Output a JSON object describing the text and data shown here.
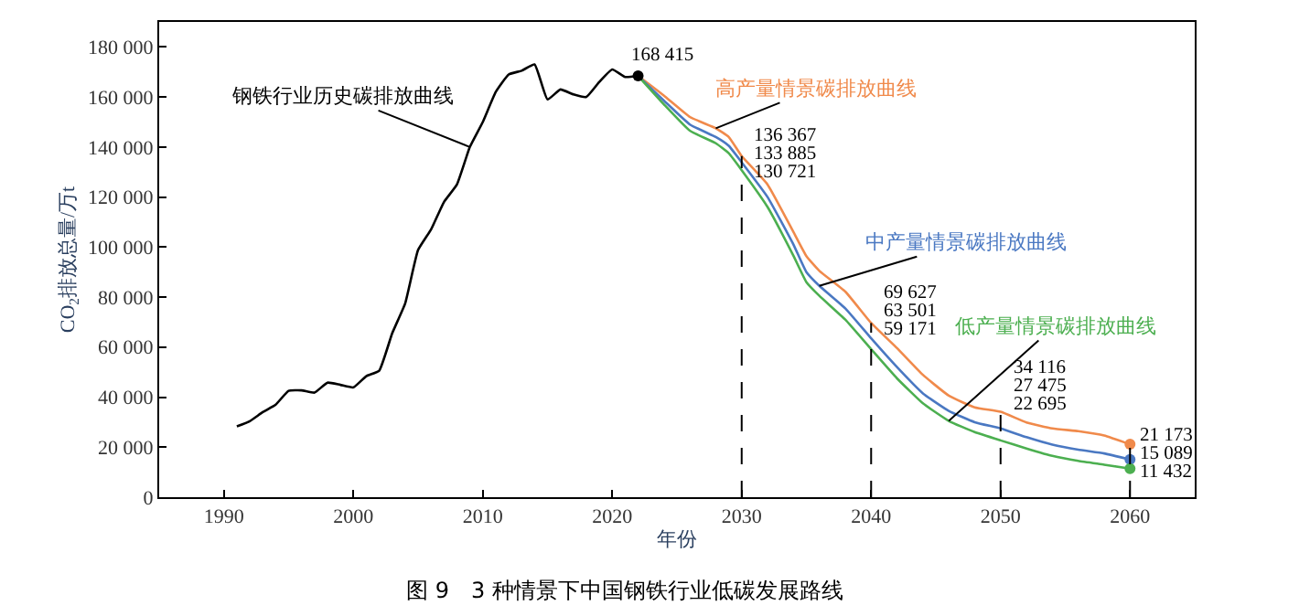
{
  "chart_data": {
    "type": "line",
    "title": "图 9　3 种情景下中国钢铁行业低碳发展路线",
    "xlabel": "年份",
    "ylabel": "CO$_{2}$排放总量/万t",
    "xlim": [
      1985,
      2065
    ],
    "xticks": [
      1990,
      2000,
      2010,
      2020,
      2030,
      2040,
      2050,
      2060
    ],
    "ylim": [
      0,
      190000
    ],
    "yticks": [
      0,
      {
        "value": 20000,
        "label": "20 000"
      },
      {
        "value": 40000,
        "label": "40 000"
      },
      {
        "value": 60000,
        "label": "60 000"
      },
      {
        "value": 80000,
        "label": "80 000"
      },
      {
        "value": 100000,
        "label": "100 000"
      },
      {
        "value": 120000,
        "label": "120 000"
      },
      {
        "value": 140000,
        "label": "140 000"
      },
      {
        "value": 160000,
        "label": "160 000"
      },
      {
        "value": 180000,
        "label": "180 000"
      }
    ],
    "line_style": "solid",
    "ref_lines": [
      {
        "axis": "x",
        "value": 2030,
        "color": "#000000",
        "line_style": "dashed"
      },
      {
        "axis": "x",
        "value": 2040,
        "color": "#000000",
        "line_style": "dashed"
      },
      {
        "axis": "x",
        "value": 2050,
        "color": "#000000",
        "line_style": "dashed"
      },
      {
        "axis": "x",
        "value": 2060,
        "color": "#000000",
        "line_style": "dashed"
      }
    ],
    "series": [
      {
        "name": "钢铁行业历史碳排放曲线",
        "color": "#000000",
        "x": [
          1991,
          1992,
          1993,
          1994,
          1995,
          1996,
          1997,
          1998,
          1999,
          2000,
          2001,
          2002,
          2003,
          2004,
          2005,
          2006,
          2007,
          2008,
          2009,
          2010,
          2011,
          2012,
          2013,
          2014,
          2015,
          2016,
          2017,
          2018,
          2019,
          2020,
          2021,
          2022
        ],
        "values": [
          28300,
          30400,
          34000,
          37000,
          42500,
          42700,
          41800,
          45800,
          44900,
          43900,
          48400,
          50600,
          65500,
          77400,
          98800,
          107000,
          118000,
          125000,
          140000,
          150000,
          162000,
          169000,
          170500,
          173000,
          159000,
          163000,
          161000,
          160000,
          166000,
          171000,
          168000,
          168415
        ]
      },
      {
        "name": "高产量情景碳排放曲线",
        "color": "#f08a4b",
        "x": [
          2022,
          2024,
          2026,
          2028,
          2029,
          2030,
          2032,
          2034,
          2035,
          2036,
          2038,
          2040,
          2042,
          2044,
          2046,
          2048,
          2050,
          2052,
          2054,
          2056,
          2058,
          2060
        ],
        "values": [
          168415,
          160500,
          152000,
          147500,
          144000,
          136367,
          125000,
          106000,
          96400,
          90500,
          82200,
          69627,
          59600,
          48900,
          40600,
          35900,
          34116,
          29900,
          27500,
          26400,
          24700,
          21173
        ],
        "value_labels": [
          null,
          null,
          null,
          null,
          null,
          "136 367",
          null,
          null,
          null,
          null,
          null,
          "69 627",
          null,
          null,
          null,
          null,
          "34 116",
          null,
          null,
          null,
          null,
          null
        ]
      },
      {
        "name": "中产量情景碳排放曲线",
        "color": "#4a78c2",
        "x": [
          2022,
          2024,
          2026,
          2028,
          2029,
          2030,
          2032,
          2034,
          2035,
          2036,
          2038,
          2040,
          2042,
          2044,
          2046,
          2048,
          2050,
          2052,
          2054,
          2056,
          2058,
          2060
        ],
        "values": [
          168415,
          158500,
          149000,
          144000,
          140500,
          133885,
          120000,
          101000,
          90000,
          84500,
          75500,
          63501,
          52000,
          41500,
          34500,
          30000,
          27475,
          24000,
          21000,
          19000,
          17500,
          15089
        ],
        "value_labels": [
          null,
          null,
          null,
          null,
          null,
          "133 885",
          null,
          null,
          null,
          null,
          null,
          "63 501",
          null,
          null,
          null,
          null,
          "27 475",
          null,
          null,
          null,
          null,
          null
        ]
      },
      {
        "name": "低产量情景碳排放曲线",
        "color": "#4caf50",
        "x": [
          2022,
          2024,
          2026,
          2028,
          2029,
          2030,
          2032,
          2034,
          2035,
          2036,
          2038,
          2040,
          2042,
          2044,
          2046,
          2048,
          2050,
          2052,
          2054,
          2056,
          2058,
          2060
        ],
        "values": [
          168415,
          157000,
          146500,
          141500,
          137500,
          130721,
          116000,
          96500,
          86000,
          80500,
          71000,
          59171,
          47500,
          37500,
          30500,
          26000,
          22695,
          19500,
          16500,
          14500,
          13000,
          11432
        ],
        "value_labels": [
          null,
          null,
          null,
          null,
          null,
          "130 721",
          null,
          null,
          null,
          null,
          null,
          "59 171",
          null,
          null,
          null,
          null,
          "22 695",
          null,
          null,
          null,
          null,
          null
        ]
      },
      {
        "type": "scatter",
        "marker": "circle",
        "color": "#000000",
        "x": [
          2022
        ],
        "values": [
          168415
        ],
        "value_labels": [
          "168 415"
        ]
      },
      {
        "type": "scatter",
        "marker": "circle",
        "color": "#f08a4b",
        "x": [
          2060
        ],
        "values": [
          21173
        ],
        "value_labels": [
          "21 173"
        ]
      },
      {
        "type": "scatter",
        "marker": "circle",
        "color": "#4a78c2",
        "x": [
          2060
        ],
        "values": [
          15089
        ],
        "value_labels": [
          "15 089"
        ]
      },
      {
        "type": "scatter",
        "marker": "circle",
        "color": "#4caf50",
        "x": [
          2060
        ],
        "values": [
          11432
        ],
        "value_labels": [
          "11 432"
        ]
      }
    ]
  }
}
